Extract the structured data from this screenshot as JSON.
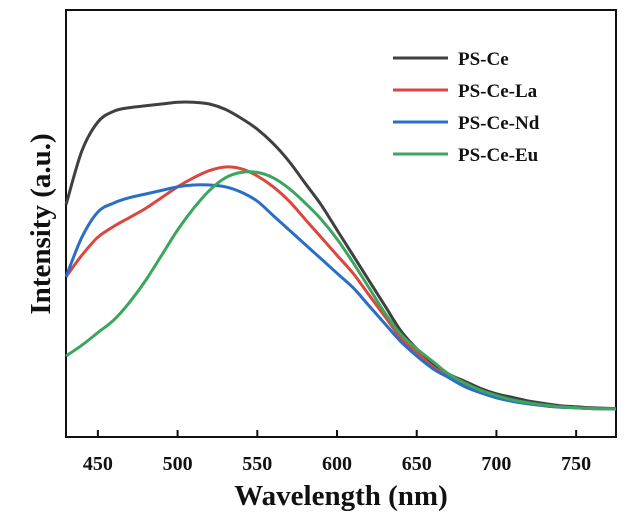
{
  "chart_data": {
    "type": "line",
    "title": "",
    "xlabel": "Wavelength (nm)",
    "ylabel": "Intensity (a.u.)",
    "xlim": [
      430,
      775
    ],
    "ylim": [
      0,
      1.0
    ],
    "x_ticks": [
      450,
      500,
      550,
      600,
      650,
      700,
      750
    ],
    "x_tick_labels": [
      "450",
      "500",
      "550",
      "600",
      "650",
      "700",
      "750"
    ],
    "y_ticks_shown": false,
    "grid": false,
    "legend_position": "top-right",
    "series": [
      {
        "name": "PS-Ce",
        "color": "#404040",
        "x": [
          430,
          440,
          450,
          460,
          470,
          480,
          490,
          500,
          510,
          520,
          530,
          540,
          550,
          560,
          570,
          580,
          590,
          600,
          610,
          620,
          630,
          640,
          650,
          660,
          670,
          680,
          690,
          700,
          710,
          720,
          730,
          740,
          750,
          760,
          775
        ],
        "y": [
          0.57,
          0.72,
          0.8,
          0.83,
          0.84,
          0.845,
          0.85,
          0.855,
          0.855,
          0.85,
          0.835,
          0.81,
          0.78,
          0.74,
          0.69,
          0.63,
          0.57,
          0.5,
          0.43,
          0.36,
          0.29,
          0.22,
          0.17,
          0.13,
          0.1,
          0.08,
          0.06,
          0.045,
          0.035,
          0.025,
          0.018,
          0.012,
          0.009,
          0.006,
          0.004
        ]
      },
      {
        "name": "PS-Ce-La",
        "color": "#d9473f",
        "x": [
          430,
          440,
          450,
          460,
          470,
          480,
          490,
          500,
          510,
          520,
          530,
          540,
          550,
          560,
          570,
          580,
          590,
          600,
          610,
          620,
          630,
          640,
          650,
          660,
          670,
          680,
          690,
          700,
          710,
          720,
          730,
          740,
          750,
          760,
          775
        ],
        "y": [
          0.37,
          0.43,
          0.48,
          0.51,
          0.535,
          0.56,
          0.59,
          0.62,
          0.645,
          0.665,
          0.675,
          0.67,
          0.65,
          0.62,
          0.58,
          0.53,
          0.48,
          0.43,
          0.38,
          0.32,
          0.26,
          0.2,
          0.16,
          0.12,
          0.095,
          0.07,
          0.05,
          0.035,
          0.025,
          0.018,
          0.012,
          0.008,
          0.006,
          0.004,
          0.003
        ]
      },
      {
        "name": "PS-Ce-Nd",
        "color": "#2a6fc7",
        "x": [
          430,
          440,
          450,
          460,
          470,
          480,
          490,
          500,
          510,
          520,
          530,
          540,
          550,
          560,
          570,
          580,
          590,
          600,
          610,
          620,
          630,
          640,
          650,
          660,
          670,
          680,
          690,
          700,
          710,
          720,
          730,
          740,
          750,
          760,
          775
        ],
        "y": [
          0.37,
          0.48,
          0.55,
          0.575,
          0.59,
          0.6,
          0.61,
          0.62,
          0.625,
          0.625,
          0.62,
          0.605,
          0.58,
          0.54,
          0.5,
          0.46,
          0.42,
          0.38,
          0.34,
          0.29,
          0.24,
          0.19,
          0.15,
          0.115,
          0.09,
          0.065,
          0.048,
          0.034,
          0.024,
          0.017,
          0.012,
          0.008,
          0.006,
          0.004,
          0.003
        ]
      },
      {
        "name": "PS-Ce-Eu",
        "color": "#3aa65e",
        "x": [
          430,
          440,
          450,
          460,
          470,
          480,
          490,
          500,
          510,
          520,
          530,
          540,
          550,
          560,
          570,
          580,
          590,
          600,
          610,
          620,
          630,
          640,
          650,
          660,
          670,
          680,
          690,
          700,
          710,
          720,
          730,
          740,
          750,
          760,
          775
        ],
        "y": [
          0.15,
          0.18,
          0.215,
          0.25,
          0.3,
          0.36,
          0.43,
          0.5,
          0.56,
          0.61,
          0.645,
          0.66,
          0.66,
          0.645,
          0.615,
          0.575,
          0.53,
          0.475,
          0.41,
          0.34,
          0.27,
          0.21,
          0.17,
          0.135,
          0.1,
          0.075,
          0.055,
          0.04,
          0.028,
          0.02,
          0.014,
          0.009,
          0.006,
          0.004,
          0.003
        ]
      }
    ]
  }
}
